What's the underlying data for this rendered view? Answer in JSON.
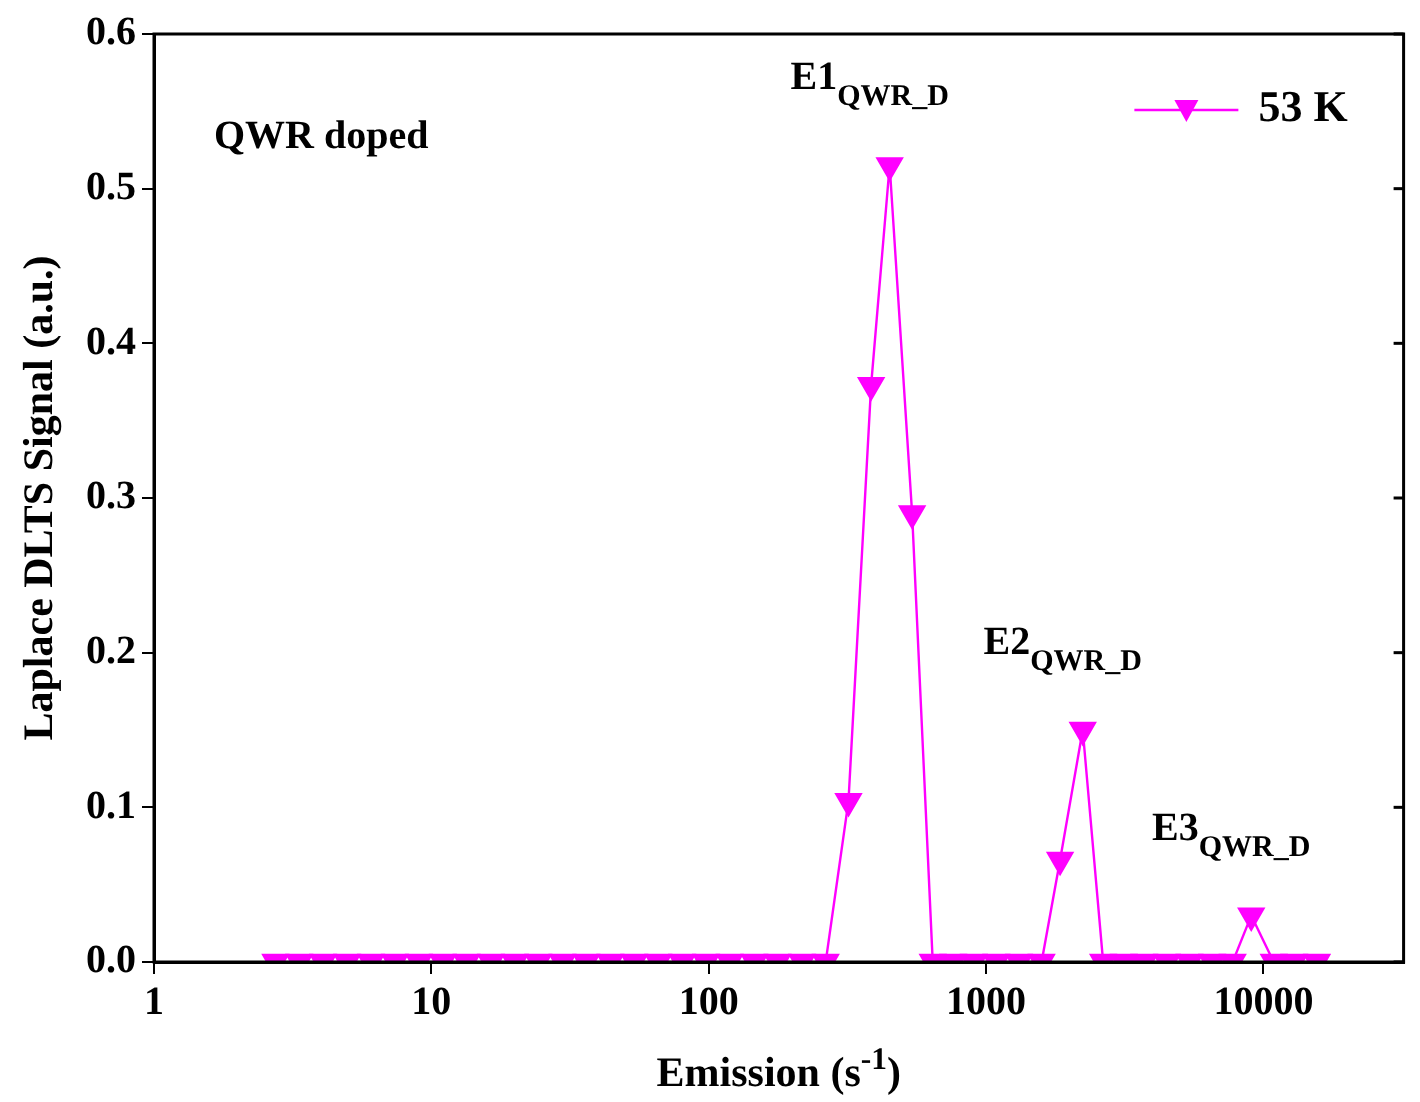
{
  "chart_data": {
    "type": "line",
    "xlabel": "Emission (s$^{-1}$)",
    "ylabel": "Laplace DLTS Signal (a.u.)",
    "log": "x",
    "xlim": [
      1,
      32000
    ],
    "ylim": [
      0,
      0.6
    ],
    "xticks": [
      1,
      10,
      100,
      1000,
      10000
    ],
    "yticks": [
      {
        "value": 0,
        "label": "0.0"
      },
      {
        "value": 0.1,
        "label": "0.1"
      },
      {
        "value": 0.2,
        "label": "0.2"
      },
      {
        "value": 0.3,
        "label": "0.3"
      },
      {
        "value": 0.4,
        "label": "0.4"
      },
      {
        "value": 0.5,
        "label": "0.5"
      },
      {
        "value": 0.6,
        "label": "0.6"
      }
    ],
    "grid": false,
    "legend": "top right",
    "marker": "triangle",
    "line_style": "solid",
    "x": [
      2.74,
      3.34,
      4.07,
      4.97,
      6.06,
      7.39,
      9.02,
      11.0,
      13.4,
      16.4,
      20.0,
      24.3,
      29.7,
      36.2,
      44.2,
      53.9,
      65.8,
      80.2,
      97.8,
      119,
      146,
      177,
      217,
      264,
      319,
      385,
      449,
      541,
      642,
      761,
      903,
      1089,
      1314,
      1585,
      1848,
      2230,
      2642,
      3135,
      3718,
      4487,
      5411,
      6531,
      7743,
      9033,
      10890,
      12910,
      15590
    ],
    "series": [
      {
        "name": "53 K",
        "color": "#ff00ff",
        "values": [
          0,
          0,
          0,
          0,
          0,
          0,
          0,
          0,
          0,
          0,
          0,
          0,
          0,
          0,
          0,
          0,
          0,
          0,
          0,
          0,
          0,
          0,
          0,
          0,
          0.104,
          0.373,
          0.515,
          0.29,
          0,
          0,
          0,
          0,
          0,
          0,
          0.066,
          0.15,
          0,
          0,
          0,
          0,
          0,
          0,
          0,
          0.03,
          0,
          0,
          0
        ]
      }
    ],
    "annotations": [
      "QWR doped",
      {
        "text": "E1$_{QWR_D}$",
        "x": 449,
        "y": 0.515
      },
      {
        "text": "E2$_{QWR_D}$",
        "x": 2230,
        "y": 0.15
      },
      {
        "text": "E3$_{QWR_D}$",
        "x": 9033,
        "y": 0.03
      }
    ]
  }
}
